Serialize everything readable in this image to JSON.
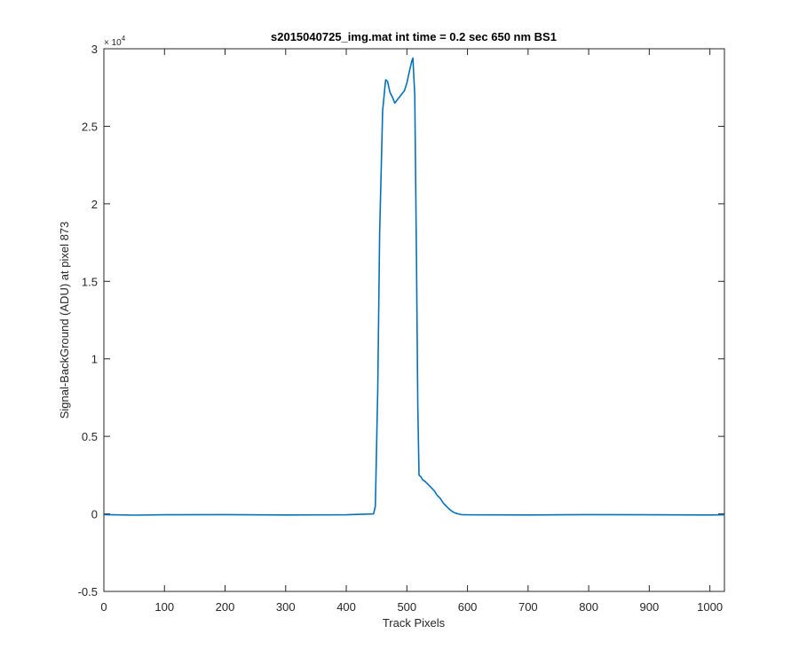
{
  "chart_data": {
    "type": "line",
    "title": "s2015040725_img.mat int time = 0.2 sec  650 nm BS1",
    "xlabel": "Track Pixels",
    "ylabel": "Signal-BackGround (ADU) at pixel 873",
    "xlim": [
      0,
      1024
    ],
    "ylim": [
      -5000,
      30000
    ],
    "xticks": [
      0,
      100,
      200,
      300,
      400,
      500,
      600,
      700,
      800,
      900,
      1000
    ],
    "xtick_labels": [
      "0",
      "100",
      "200",
      "300",
      "400",
      "500",
      "600",
      "700",
      "800",
      "900",
      "1000"
    ],
    "yticks": [
      -5000,
      0,
      5000,
      10000,
      15000,
      20000,
      25000,
      30000
    ],
    "ytick_labels": [
      "-0.5",
      "0",
      "0.5",
      "1",
      "1.5",
      "2",
      "2.5",
      "3"
    ],
    "y_exponent_label": {
      "base": "× 10",
      "power": "4"
    },
    "grid": false,
    "line_color": "#0072BD",
    "series": [
      {
        "x": [
          0,
          50,
          100,
          200,
          300,
          400,
          445,
          448,
          452,
          455,
          460,
          465,
          468,
          472,
          476,
          480,
          484,
          488,
          492,
          496,
          500,
          504,
          508,
          510,
          513,
          516,
          518,
          520,
          523,
          526,
          530,
          535,
          540,
          545,
          550,
          555,
          560,
          565,
          570,
          575,
          580,
          585,
          590,
          600,
          700,
          800,
          900,
          1000,
          1024
        ],
        "y": [
          -50,
          -80,
          -60,
          -50,
          -70,
          -60,
          0,
          500,
          8000,
          18000,
          26000,
          28000,
          27900,
          27200,
          26900,
          26500,
          26700,
          26900,
          27100,
          27300,
          27800,
          28500,
          29200,
          29400,
          27000,
          16000,
          7000,
          2500,
          2400,
          2200,
          2100,
          1900,
          1700,
          1500,
          1200,
          1000,
          700,
          500,
          300,
          150,
          50,
          0,
          -50,
          -60,
          -70,
          -50,
          -60,
          -70,
          -60
        ]
      }
    ]
  }
}
